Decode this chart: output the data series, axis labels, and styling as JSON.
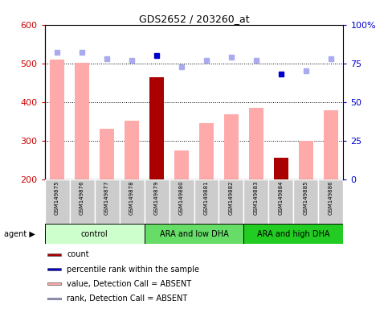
{
  "title": "GDS2652 / 203260_at",
  "samples": [
    "GSM149875",
    "GSM149876",
    "GSM149877",
    "GSM149878",
    "GSM149879",
    "GSM149880",
    "GSM149881",
    "GSM149882",
    "GSM149883",
    "GSM149884",
    "GSM149885",
    "GSM149886"
  ],
  "groups": [
    {
      "label": "control",
      "indices": [
        0,
        1,
        2,
        3
      ],
      "color": "#ccffcc"
    },
    {
      "label": "ARA and low DHA",
      "indices": [
        4,
        5,
        6,
        7
      ],
      "color": "#66dd66"
    },
    {
      "label": "ARA and high DHA",
      "indices": [
        8,
        9,
        10,
        11
      ],
      "color": "#22cc22"
    }
  ],
  "bar_values": [
    510,
    502,
    330,
    352,
    464,
    275,
    345,
    368,
    385,
    255,
    300,
    378
  ],
  "bar_colors": [
    "#ffaaaa",
    "#ffaaaa",
    "#ffaaaa",
    "#ffaaaa",
    "#aa0000",
    "#ffaaaa",
    "#ffaaaa",
    "#ffaaaa",
    "#ffaaaa",
    "#aa0000",
    "#ffaaaa",
    "#ffaaaa"
  ],
  "rank_values": [
    82,
    82,
    78,
    77,
    80,
    73,
    77,
    79,
    77,
    68,
    70,
    78
  ],
  "rank_colors": [
    "#aaaaee",
    "#aaaaee",
    "#aaaaee",
    "#aaaaee",
    "#0000cc",
    "#aaaaee",
    "#aaaaee",
    "#aaaaee",
    "#aaaaee",
    "#0000cc",
    "#aaaaee",
    "#aaaaee"
  ],
  "ylim_left": [
    200,
    600
  ],
  "ylim_right": [
    0,
    100
  ],
  "yticks_left": [
    200,
    300,
    400,
    500,
    600
  ],
  "yticks_right": [
    0,
    25,
    50,
    75,
    100
  ],
  "ylabel_left_color": "#cc0000",
  "ylabel_right_color": "#0000cc",
  "legend_items": [
    {
      "color": "#aa0000",
      "label": "count"
    },
    {
      "color": "#0000cc",
      "label": "percentile rank within the sample"
    },
    {
      "color": "#ffaaaa",
      "label": "value, Detection Call = ABSENT"
    },
    {
      "color": "#aaaaee",
      "label": "rank, Detection Call = ABSENT"
    }
  ]
}
